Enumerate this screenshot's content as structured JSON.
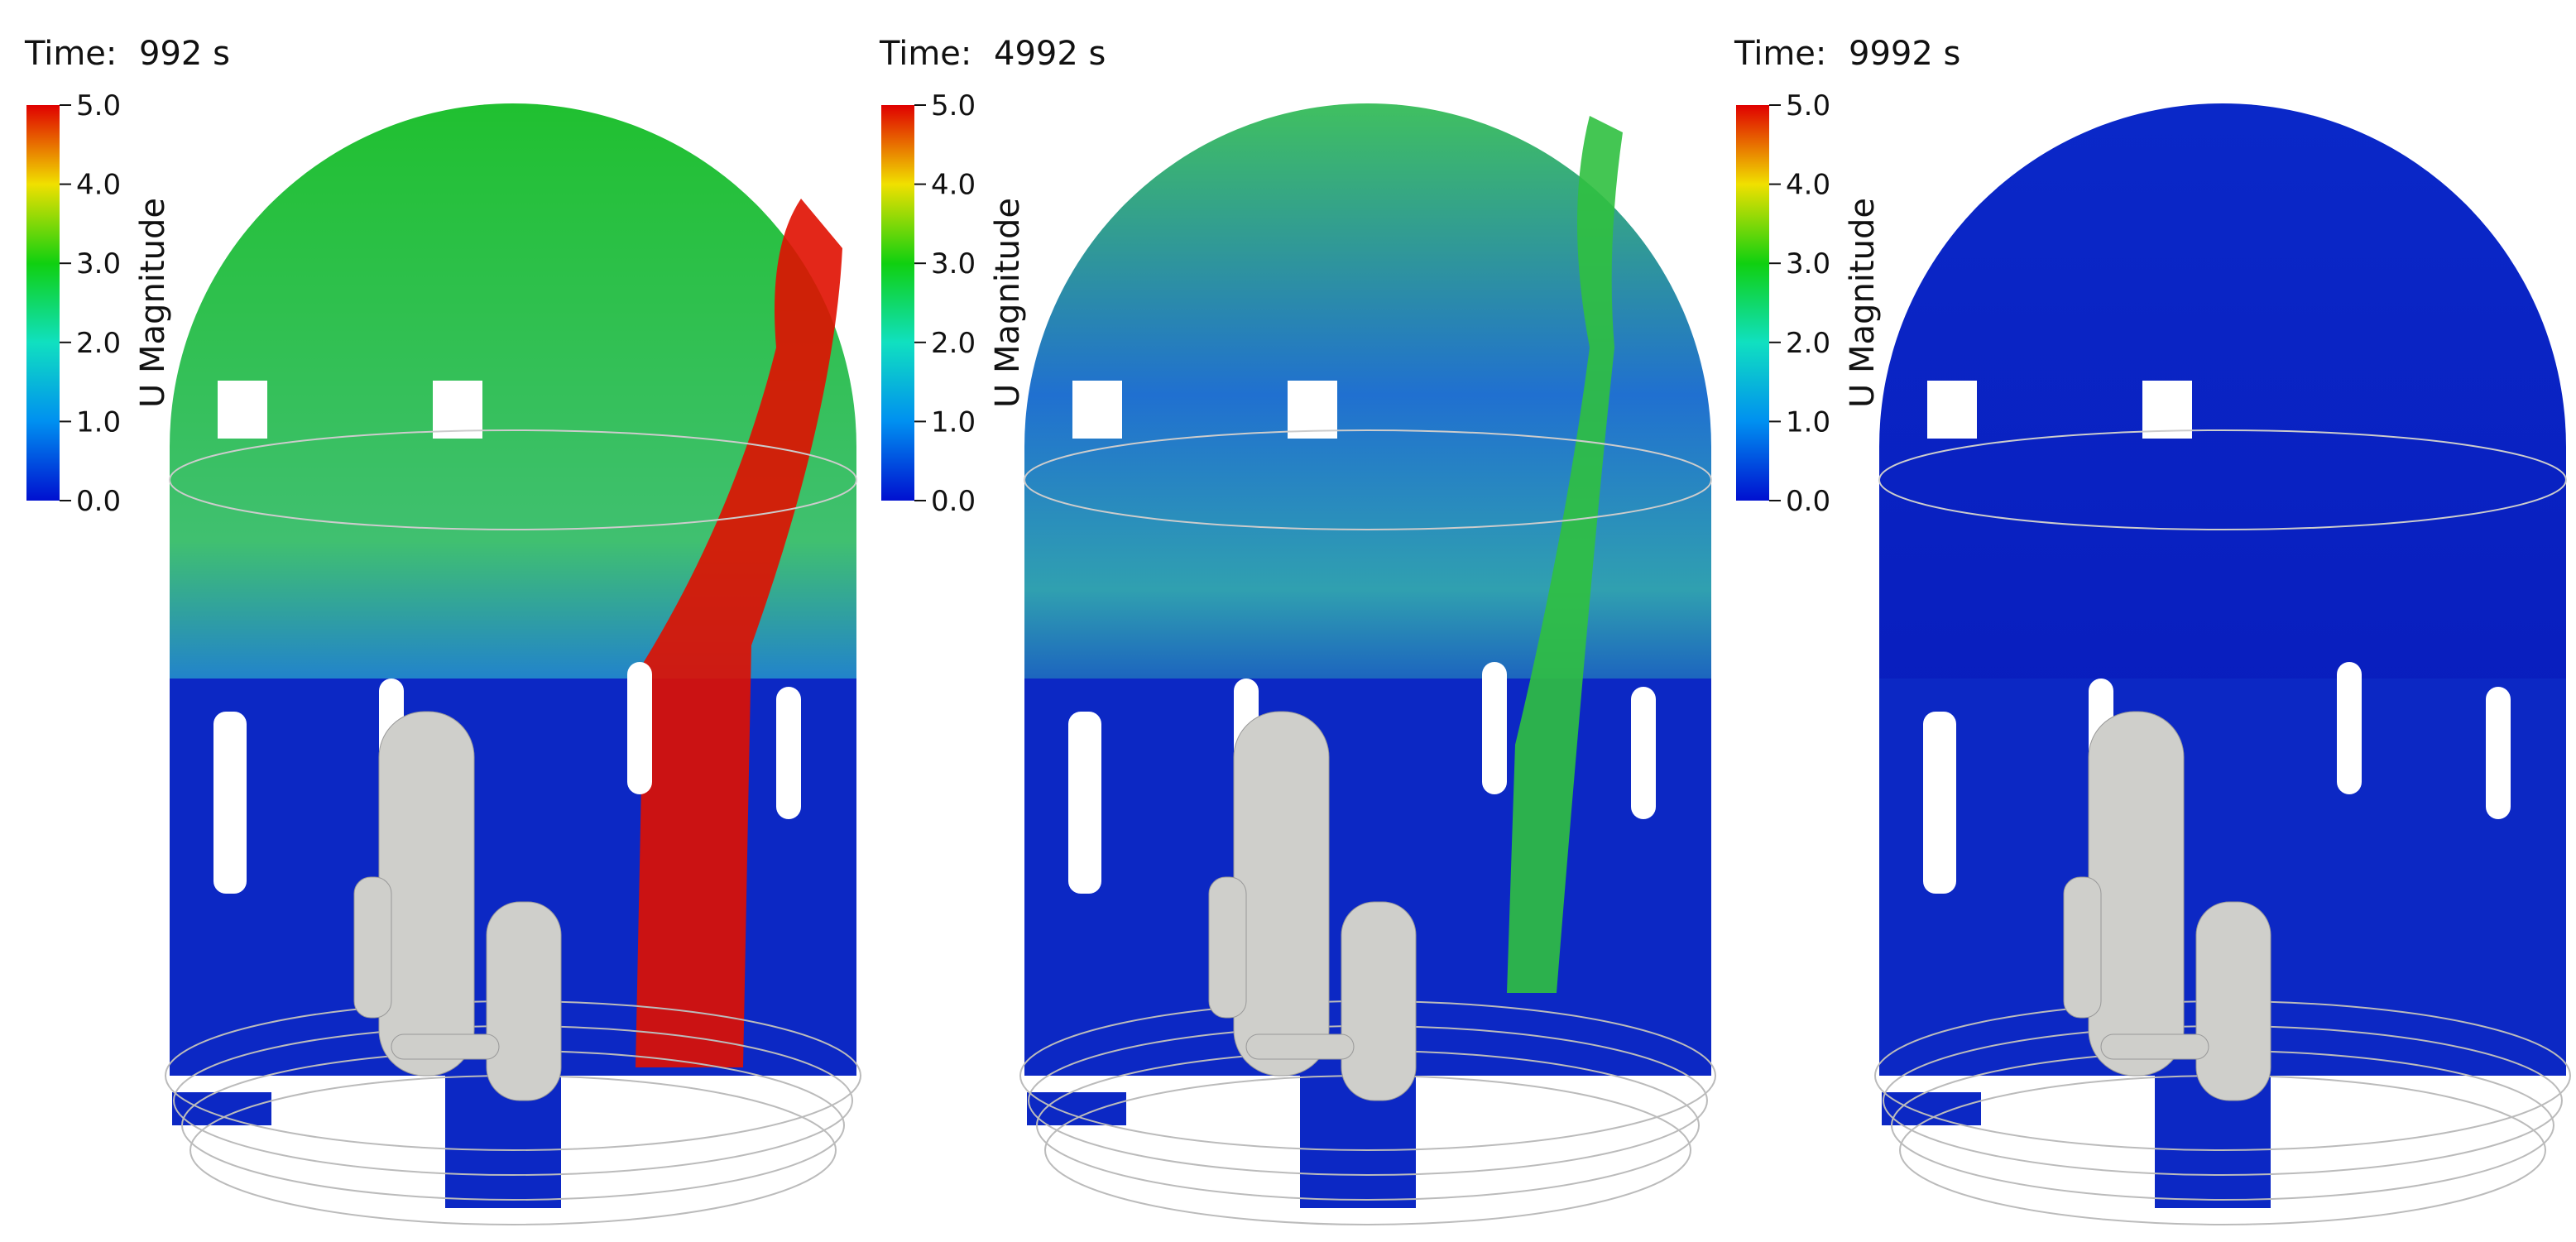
{
  "panels": [
    {
      "time_label": "Time:",
      "time_value": "992 s",
      "colorbar": {
        "title": "U Magnitude",
        "ticks": [
          "5.0",
          "4.0",
          "3.0",
          "2.0",
          "1.0",
          "0.0"
        ]
      }
    },
    {
      "time_label": "Time:",
      "time_value": "4992 s",
      "colorbar": {
        "title": "U Magnitude",
        "ticks": [
          "5.0",
          "4.0",
          "3.0",
          "2.0",
          "1.0",
          "0.0"
        ]
      }
    },
    {
      "time_label": "Time:",
      "time_value": "9992 s",
      "colorbar": {
        "title": "U Magnitude",
        "ticks": [
          "5.0",
          "4.0",
          "3.0",
          "2.0",
          "1.0",
          "0.0"
        ]
      }
    }
  ]
}
